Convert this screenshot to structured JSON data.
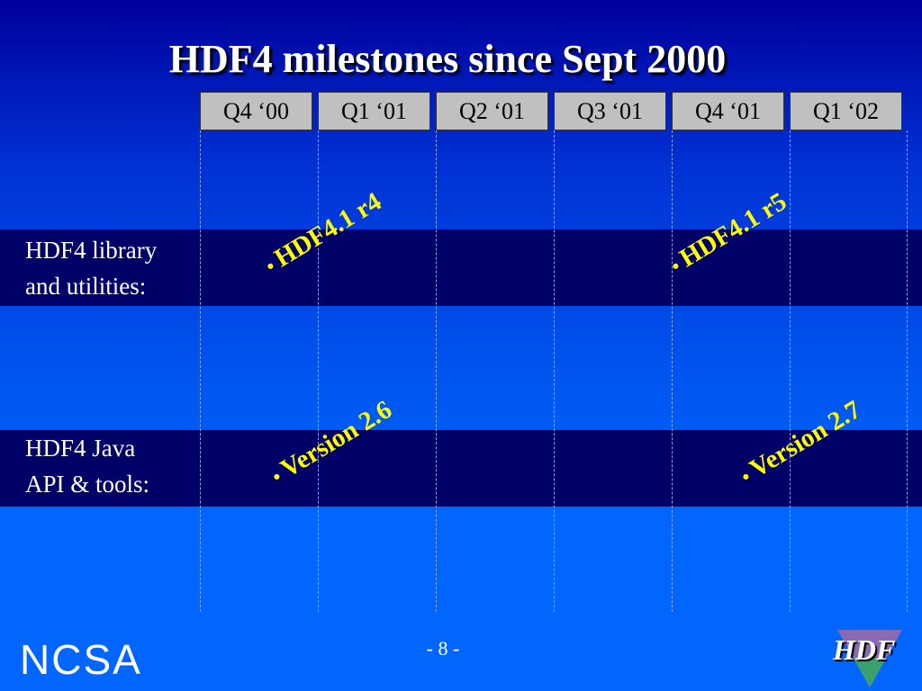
{
  "title": "HDF4 milestones since Sept 2000",
  "quarters": [
    "Q4 ‘00",
    "Q1 ‘01",
    "Q2 ‘01",
    "Q3 ‘01",
    "Q4 ‘01",
    "Q1 ‘02"
  ],
  "rows": [
    {
      "label": [
        "HDF4 library",
        "and utilities:"
      ],
      "milestones": [
        "HDF4.1 r4",
        "HDF4.1 r5"
      ]
    },
    {
      "label": [
        "HDF4 Java",
        "API & tools:"
      ],
      "milestones": [
        "Version 2.6",
        "Version 2.7"
      ]
    }
  ],
  "footer": {
    "page": "- 8 -",
    "left_logo": "NCSA",
    "right_logo": "HDF"
  }
}
